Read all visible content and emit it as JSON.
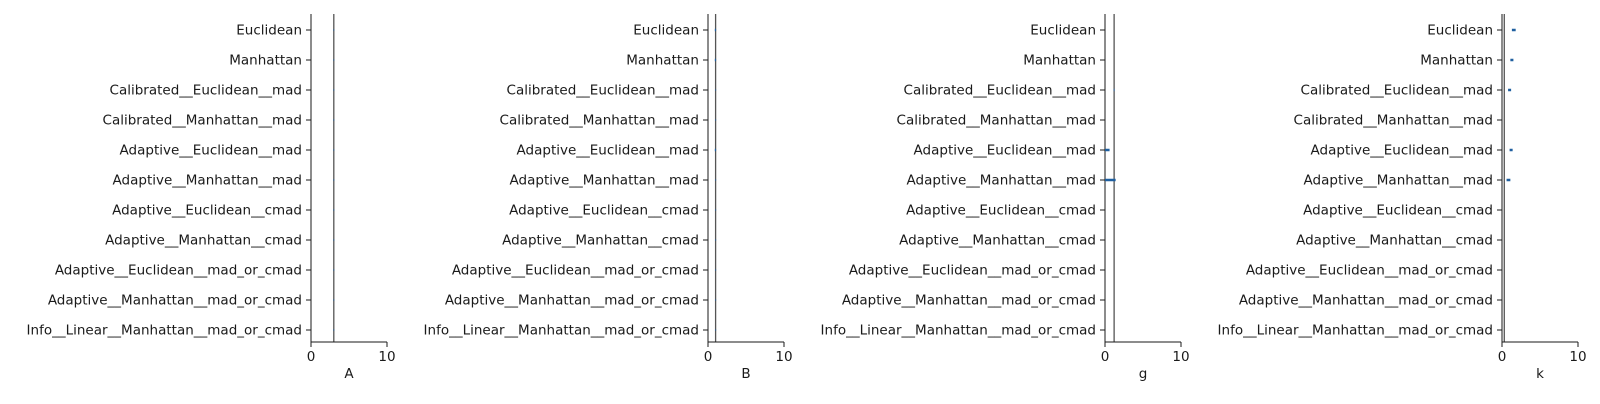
{
  "chart_data": [
    {
      "type": "bar",
      "xlabel": "A",
      "ylabel": "",
      "title": "",
      "xlim": [
        0,
        10
      ],
      "xticks": [
        "0",
        "10"
      ],
      "reference_line": 3,
      "categories": [
        "Euclidean",
        "Manhattan",
        "Calibrated__Euclidean__mad",
        "Calibrated__Manhattan__mad",
        "Adaptive__Euclidean__mad",
        "Adaptive__Manhattan__mad",
        "Adaptive__Euclidean__cmad",
        "Adaptive__Manhattan__cmad",
        "Adaptive__Euclidean__mad_or_cmad",
        "Adaptive__Manhattan__mad_or_cmad",
        "Info__Linear__Manhattan__mad_or_cmad"
      ],
      "values": [
        3,
        3,
        3,
        3,
        3,
        3,
        3,
        3,
        3,
        3,
        3
      ],
      "errors": [
        [
          0,
          0
        ],
        [
          0,
          0
        ],
        [
          0,
          0
        ],
        [
          0,
          0
        ],
        [
          0,
          0
        ],
        [
          0,
          0
        ],
        [
          0,
          0
        ],
        [
          0,
          0
        ],
        [
          0,
          0
        ],
        [
          0,
          0
        ],
        [
          0,
          0
        ]
      ]
    },
    {
      "type": "bar",
      "xlabel": "B",
      "ylabel": "",
      "title": "",
      "xlim": [
        0,
        10
      ],
      "xticks": [
        "0",
        "10"
      ],
      "reference_line": 1,
      "categories": [
        "Euclidean",
        "Manhattan",
        "Calibrated__Euclidean__mad",
        "Calibrated__Manhattan__mad",
        "Adaptive__Euclidean__mad",
        "Adaptive__Manhattan__mad",
        "Adaptive__Euclidean__cmad",
        "Adaptive__Manhattan__cmad",
        "Adaptive__Euclidean__mad_or_cmad",
        "Adaptive__Manhattan__mad_or_cmad",
        "Info__Linear__Manhattan__mad_or_cmad"
      ],
      "values": [
        1,
        1,
        1,
        1,
        1,
        1,
        1,
        1,
        1,
        1,
        1
      ],
      "errors": [
        [
          0.9,
          1.05
        ],
        [
          0.9,
          1.05
        ],
        [
          1,
          1
        ],
        [
          1,
          1
        ],
        [
          0.9,
          1.05
        ],
        [
          1,
          1
        ],
        [
          1,
          1
        ],
        [
          1,
          1
        ],
        [
          1,
          1
        ],
        [
          1,
          1
        ],
        [
          1,
          1
        ]
      ]
    },
    {
      "type": "bar",
      "xlabel": "g",
      "ylabel": "",
      "title": "",
      "xlim": [
        0,
        10
      ],
      "xticks": [
        "0",
        "10"
      ],
      "reference_line": 1.2,
      "categories": [
        "Euclidean",
        "Manhattan",
        "Calibrated__Euclidean__mad",
        "Calibrated__Manhattan__mad",
        "Adaptive__Euclidean__mad",
        "Adaptive__Manhattan__mad",
        "Adaptive__Euclidean__cmad",
        "Adaptive__Manhattan__cmad",
        "Adaptive__Euclidean__mad_or_cmad",
        "Adaptive__Manhattan__mad_or_cmad",
        "Info__Linear__Manhattan__mad_or_cmad"
      ],
      "values": [
        0,
        0,
        0,
        0,
        0,
        0,
        0,
        0,
        0,
        0,
        0
      ],
      "errors": [
        [
          0,
          0
        ],
        [
          0,
          0
        ],
        [
          1.15,
          1.25
        ],
        [
          0,
          0
        ],
        [
          0,
          0.6
        ],
        [
          0,
          1.4
        ],
        [
          0,
          0
        ],
        [
          0,
          0
        ],
        [
          0,
          0
        ],
        [
          0,
          0
        ],
        [
          0,
          0
        ]
      ]
    },
    {
      "type": "bar",
      "xlabel": "k",
      "ylabel": "",
      "title": "",
      "xlim": [
        0,
        10
      ],
      "xticks": [
        "0",
        "10"
      ],
      "reference_line": 0.3,
      "categories": [
        "Euclidean",
        "Manhattan",
        "Calibrated__Euclidean__mad",
        "Calibrated__Manhattan__mad",
        "Adaptive__Euclidean__mad",
        "Adaptive__Manhattan__mad",
        "Adaptive__Euclidean__cmad",
        "Adaptive__Manhattan__cmad",
        "Adaptive__Euclidean__mad_or_cmad",
        "Adaptive__Manhattan__mad_or_cmad",
        "Info__Linear__Manhattan__mad_or_cmad"
      ],
      "values": [
        0,
        0,
        0,
        0,
        0,
        0,
        0,
        0,
        0,
        0,
        0
      ],
      "errors": [
        [
          1.3,
          1.8
        ],
        [
          1.1,
          1.5
        ],
        [
          0.8,
          1.2
        ],
        [
          0,
          0
        ],
        [
          1.0,
          1.4
        ],
        [
          0.6,
          1.1
        ],
        [
          0,
          0
        ],
        [
          0,
          0
        ],
        [
          0,
          0
        ],
        [
          0,
          0
        ],
        [
          0,
          0
        ]
      ]
    }
  ],
  "colors": {
    "axis": "#1a1a1a",
    "reference_line": "#555555",
    "error_bar": "#1f5f9f"
  }
}
